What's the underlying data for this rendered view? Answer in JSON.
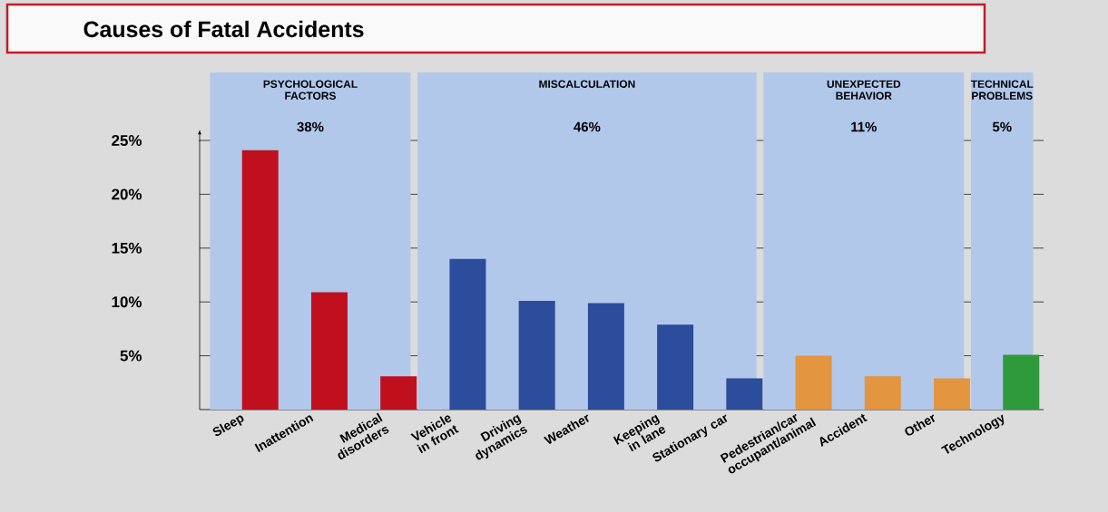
{
  "chart_data": {
    "type": "bar",
    "title": "Causes of Fatal Accidents",
    "categories": [
      "Sleep",
      "Inattention",
      "Medical disorders",
      "Vehicle in front",
      "Driving dynamics",
      "Weather",
      "Keeping in lane",
      "Stationary car",
      "Pedestrian/car occupant/animal",
      "Accident",
      "Other",
      "Technology"
    ],
    "values": [
      24.1,
      10.9,
      3.1,
      14.0,
      10.1,
      9.9,
      7.9,
      2.9,
      5.0,
      3.1,
      2.9,
      5.1
    ],
    "colors": [
      "#c0101e",
      "#c0101e",
      "#c0101e",
      "#2c4c9c",
      "#2c4c9c",
      "#2c4c9c",
      "#2c4c9c",
      "#2c4c9c",
      "#e3953f",
      "#e3953f",
      "#e3953f",
      "#2f9a3c"
    ],
    "ylim": [
      0,
      25
    ],
    "yticks": [
      {
        "value": 5,
        "label": "5%"
      },
      {
        "value": 10,
        "label": "10%"
      },
      {
        "value": 15,
        "label": "15%"
      },
      {
        "value": 20,
        "label": "20%"
      },
      {
        "value": 25,
        "label": "25%"
      }
    ],
    "grid": "y",
    "bands": [
      {
        "axis": "x",
        "from": "Sleep",
        "to": "Medical disorders",
        "label": "PSYCHOLOGICAL FACTORS",
        "color": "#b1c8ea"
      },
      {
        "axis": "x",
        "from": "Vehicle in front",
        "to": "Stationary car",
        "label": "MISCALCULATION",
        "color": "#b1c8ea"
      },
      {
        "axis": "x",
        "from": "Pedestrian/car occupant/animal",
        "to": "Other",
        "label": "UNEXPECTED BEHAVIOR",
        "color": "#b1c8ea"
      },
      {
        "axis": "x",
        "from": "Technology",
        "to": "Technology",
        "label": "TECHNICAL PROBLEMS",
        "color": "#b1c8ea"
      }
    ],
    "annotations": [
      "38%",
      "46%",
      "11%",
      "5%"
    ]
  }
}
